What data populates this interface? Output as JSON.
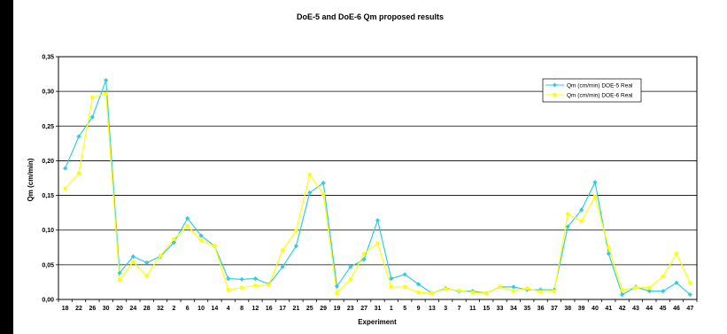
{
  "chart_data": {
    "type": "line",
    "title": "DoE-5 and DoE-6 Qm proposed results",
    "xlabel": "Experiment",
    "ylabel": "Qm (cm/min)",
    "ylim": [
      0,
      0.35
    ],
    "yticks": [
      "0,00",
      "0,05",
      "0,10",
      "0,15",
      "0,20",
      "0,25",
      "0,30",
      "0,35"
    ],
    "grid": true,
    "legend_position": "top-right",
    "categories": [
      "18",
      "22",
      "26",
      "30",
      "20",
      "24",
      "28",
      "32",
      "2",
      "6",
      "10",
      "14",
      "4",
      "8",
      "12",
      "16",
      "17",
      "21",
      "25",
      "29",
      "19",
      "23",
      "27",
      "31",
      "1",
      "5",
      "9",
      "13",
      "3",
      "7",
      "11",
      "15",
      "33",
      "34",
      "35",
      "36",
      "37",
      "38",
      "39",
      "40",
      "41",
      "42",
      "43",
      "44",
      "45",
      "46",
      "47"
    ],
    "series": [
      {
        "name": "Qm (cm/min) DOE-5 Real",
        "color": "#33ccdd",
        "values": [
          0.189,
          0.235,
          0.263,
          0.316,
          0.038,
          0.062,
          0.053,
          0.062,
          0.082,
          0.117,
          0.092,
          0.077,
          0.03,
          0.029,
          0.03,
          0.022,
          0.047,
          0.077,
          0.154,
          0.168,
          0.019,
          0.047,
          0.058,
          0.114,
          0.03,
          0.036,
          0.022,
          0.009,
          0.016,
          0.012,
          0.012,
          0.009,
          0.018,
          0.018,
          0.014,
          0.014,
          0.014,
          0.105,
          0.129,
          0.169,
          0.066,
          0.007,
          0.018,
          0.012,
          0.012,
          0.024,
          0.007
        ]
      },
      {
        "name": "Qm (cm/min) DOE-6 Real",
        "color": "#ffff00",
        "values": [
          0.16,
          0.182,
          0.291,
          0.297,
          0.028,
          0.054,
          0.034,
          0.063,
          0.087,
          0.106,
          0.085,
          0.077,
          0.014,
          0.017,
          0.02,
          0.021,
          0.071,
          0.099,
          0.18,
          0.152,
          0.009,
          0.029,
          0.066,
          0.081,
          0.018,
          0.018,
          0.01,
          0.009,
          0.015,
          0.013,
          0.01,
          0.009,
          0.018,
          0.012,
          0.016,
          0.011,
          0.012,
          0.123,
          0.113,
          0.148,
          0.075,
          0.014,
          0.017,
          0.017,
          0.033,
          0.066,
          0.024
        ]
      }
    ]
  }
}
